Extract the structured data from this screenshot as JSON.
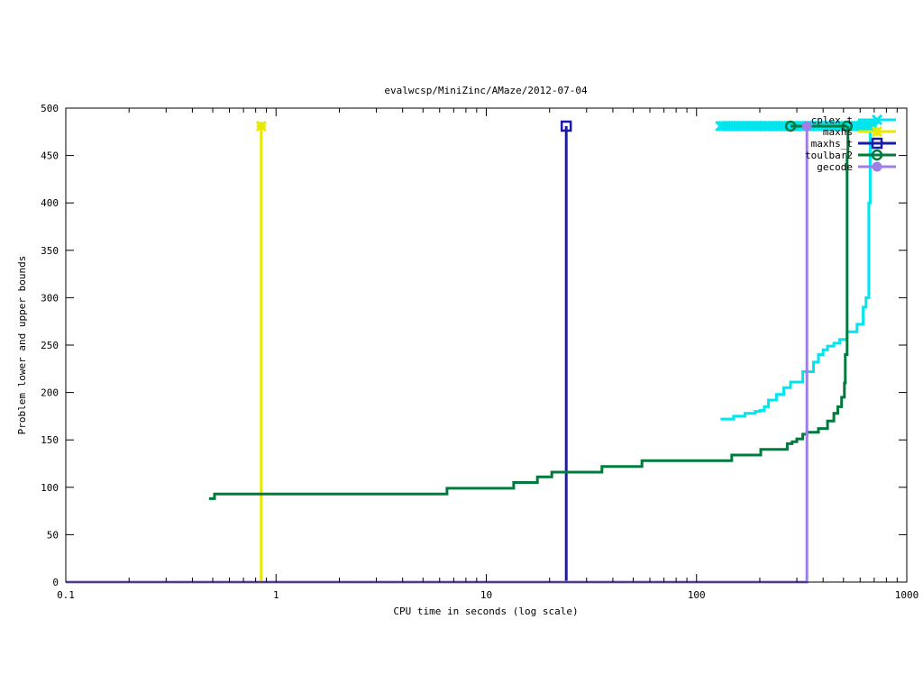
{
  "chart_data": {
    "type": "line",
    "title": "evalwcsp/MiniZinc/AMaze/2012-07-04",
    "xlabel": "CPU time in seconds (log scale)",
    "ylabel": "Problem lower and upper bounds",
    "xscale": "log",
    "xlim": [
      0.1,
      1000
    ],
    "ylim": [
      0,
      500
    ],
    "x_ticks": [
      0.1,
      1,
      10,
      100,
      1000
    ],
    "x_tick_labels": [
      "0.1",
      "1",
      "10",
      "100",
      "1000"
    ],
    "y_ticks": [
      0,
      50,
      100,
      150,
      200,
      250,
      300,
      350,
      400,
      450,
      500
    ],
    "y_tick_labels": [
      "0",
      "50",
      "100",
      "150",
      "200",
      "250",
      "300",
      "350",
      "400",
      "450",
      "500"
    ],
    "grid": false,
    "legend_position": "top-right",
    "series": [
      {
        "name": "cplex_t",
        "color": "#00e5ee",
        "marker": "x",
        "lower": [
          [
            130,
            172
          ],
          [
            150,
            175
          ],
          [
            170,
            178
          ],
          [
            190,
            180
          ],
          [
            200,
            181
          ],
          [
            210,
            185
          ],
          [
            220,
            192
          ],
          [
            240,
            198
          ],
          [
            260,
            205
          ],
          [
            280,
            211
          ],
          [
            320,
            222
          ],
          [
            360,
            232
          ],
          [
            380,
            240
          ],
          [
            400,
            245
          ],
          [
            420,
            249
          ],
          [
            450,
            252
          ],
          [
            480,
            256
          ],
          [
            520,
            264
          ],
          [
            580,
            272
          ],
          [
            620,
            290
          ],
          [
            640,
            300
          ],
          [
            660,
            400
          ],
          [
            670,
            480
          ]
        ],
        "upper": [
          [
            130,
            481
          ],
          [
            700,
            481
          ]
        ]
      },
      {
        "name": "maxhs",
        "color": "#e8e800",
        "marker": "star",
        "lower": [
          [
            0.1,
            0
          ],
          [
            0.85,
            0
          ],
          [
            0.85,
            481
          ]
        ],
        "upper": [
          [
            0.85,
            481
          ]
        ]
      },
      {
        "name": "maxhs_t",
        "color": "#1a1aaa",
        "marker": "square",
        "lower": [
          [
            0.1,
            0
          ],
          [
            24,
            0
          ],
          [
            24,
            481
          ]
        ],
        "upper": [
          [
            24,
            481
          ]
        ]
      },
      {
        "name": "toulbar2",
        "color": "#007a3d",
        "marker": "circle",
        "lower": [
          [
            0.48,
            88
          ],
          [
            0.51,
            93
          ],
          [
            6.4,
            93
          ],
          [
            6.5,
            99
          ],
          [
            13,
            99
          ],
          [
            13.5,
            105
          ],
          [
            17,
            105
          ],
          [
            17.5,
            111
          ],
          [
            20,
            111
          ],
          [
            20.5,
            116
          ],
          [
            35,
            116
          ],
          [
            35.5,
            122
          ],
          [
            54,
            122
          ],
          [
            55,
            128
          ],
          [
            145,
            128
          ],
          [
            147,
            134
          ],
          [
            200,
            134
          ],
          [
            202,
            140
          ],
          [
            265,
            140
          ],
          [
            270,
            146
          ],
          [
            285,
            148
          ],
          [
            300,
            151
          ],
          [
            320,
            156
          ],
          [
            335,
            158
          ],
          [
            380,
            162
          ],
          [
            420,
            170
          ],
          [
            450,
            178
          ],
          [
            470,
            185
          ],
          [
            490,
            195
          ],
          [
            505,
            210
          ],
          [
            510,
            240
          ],
          [
            520,
            450
          ],
          [
            525,
            481
          ]
        ],
        "upper": [
          [
            280,
            481
          ],
          [
            520,
            481
          ]
        ]
      },
      {
        "name": "gecode",
        "color": "#a07ee8",
        "marker": "filled-circle",
        "lower": [
          [
            0.1,
            0
          ],
          [
            335,
            0
          ],
          [
            335,
            481
          ]
        ],
        "upper": [
          [
            335,
            481
          ]
        ]
      }
    ]
  }
}
